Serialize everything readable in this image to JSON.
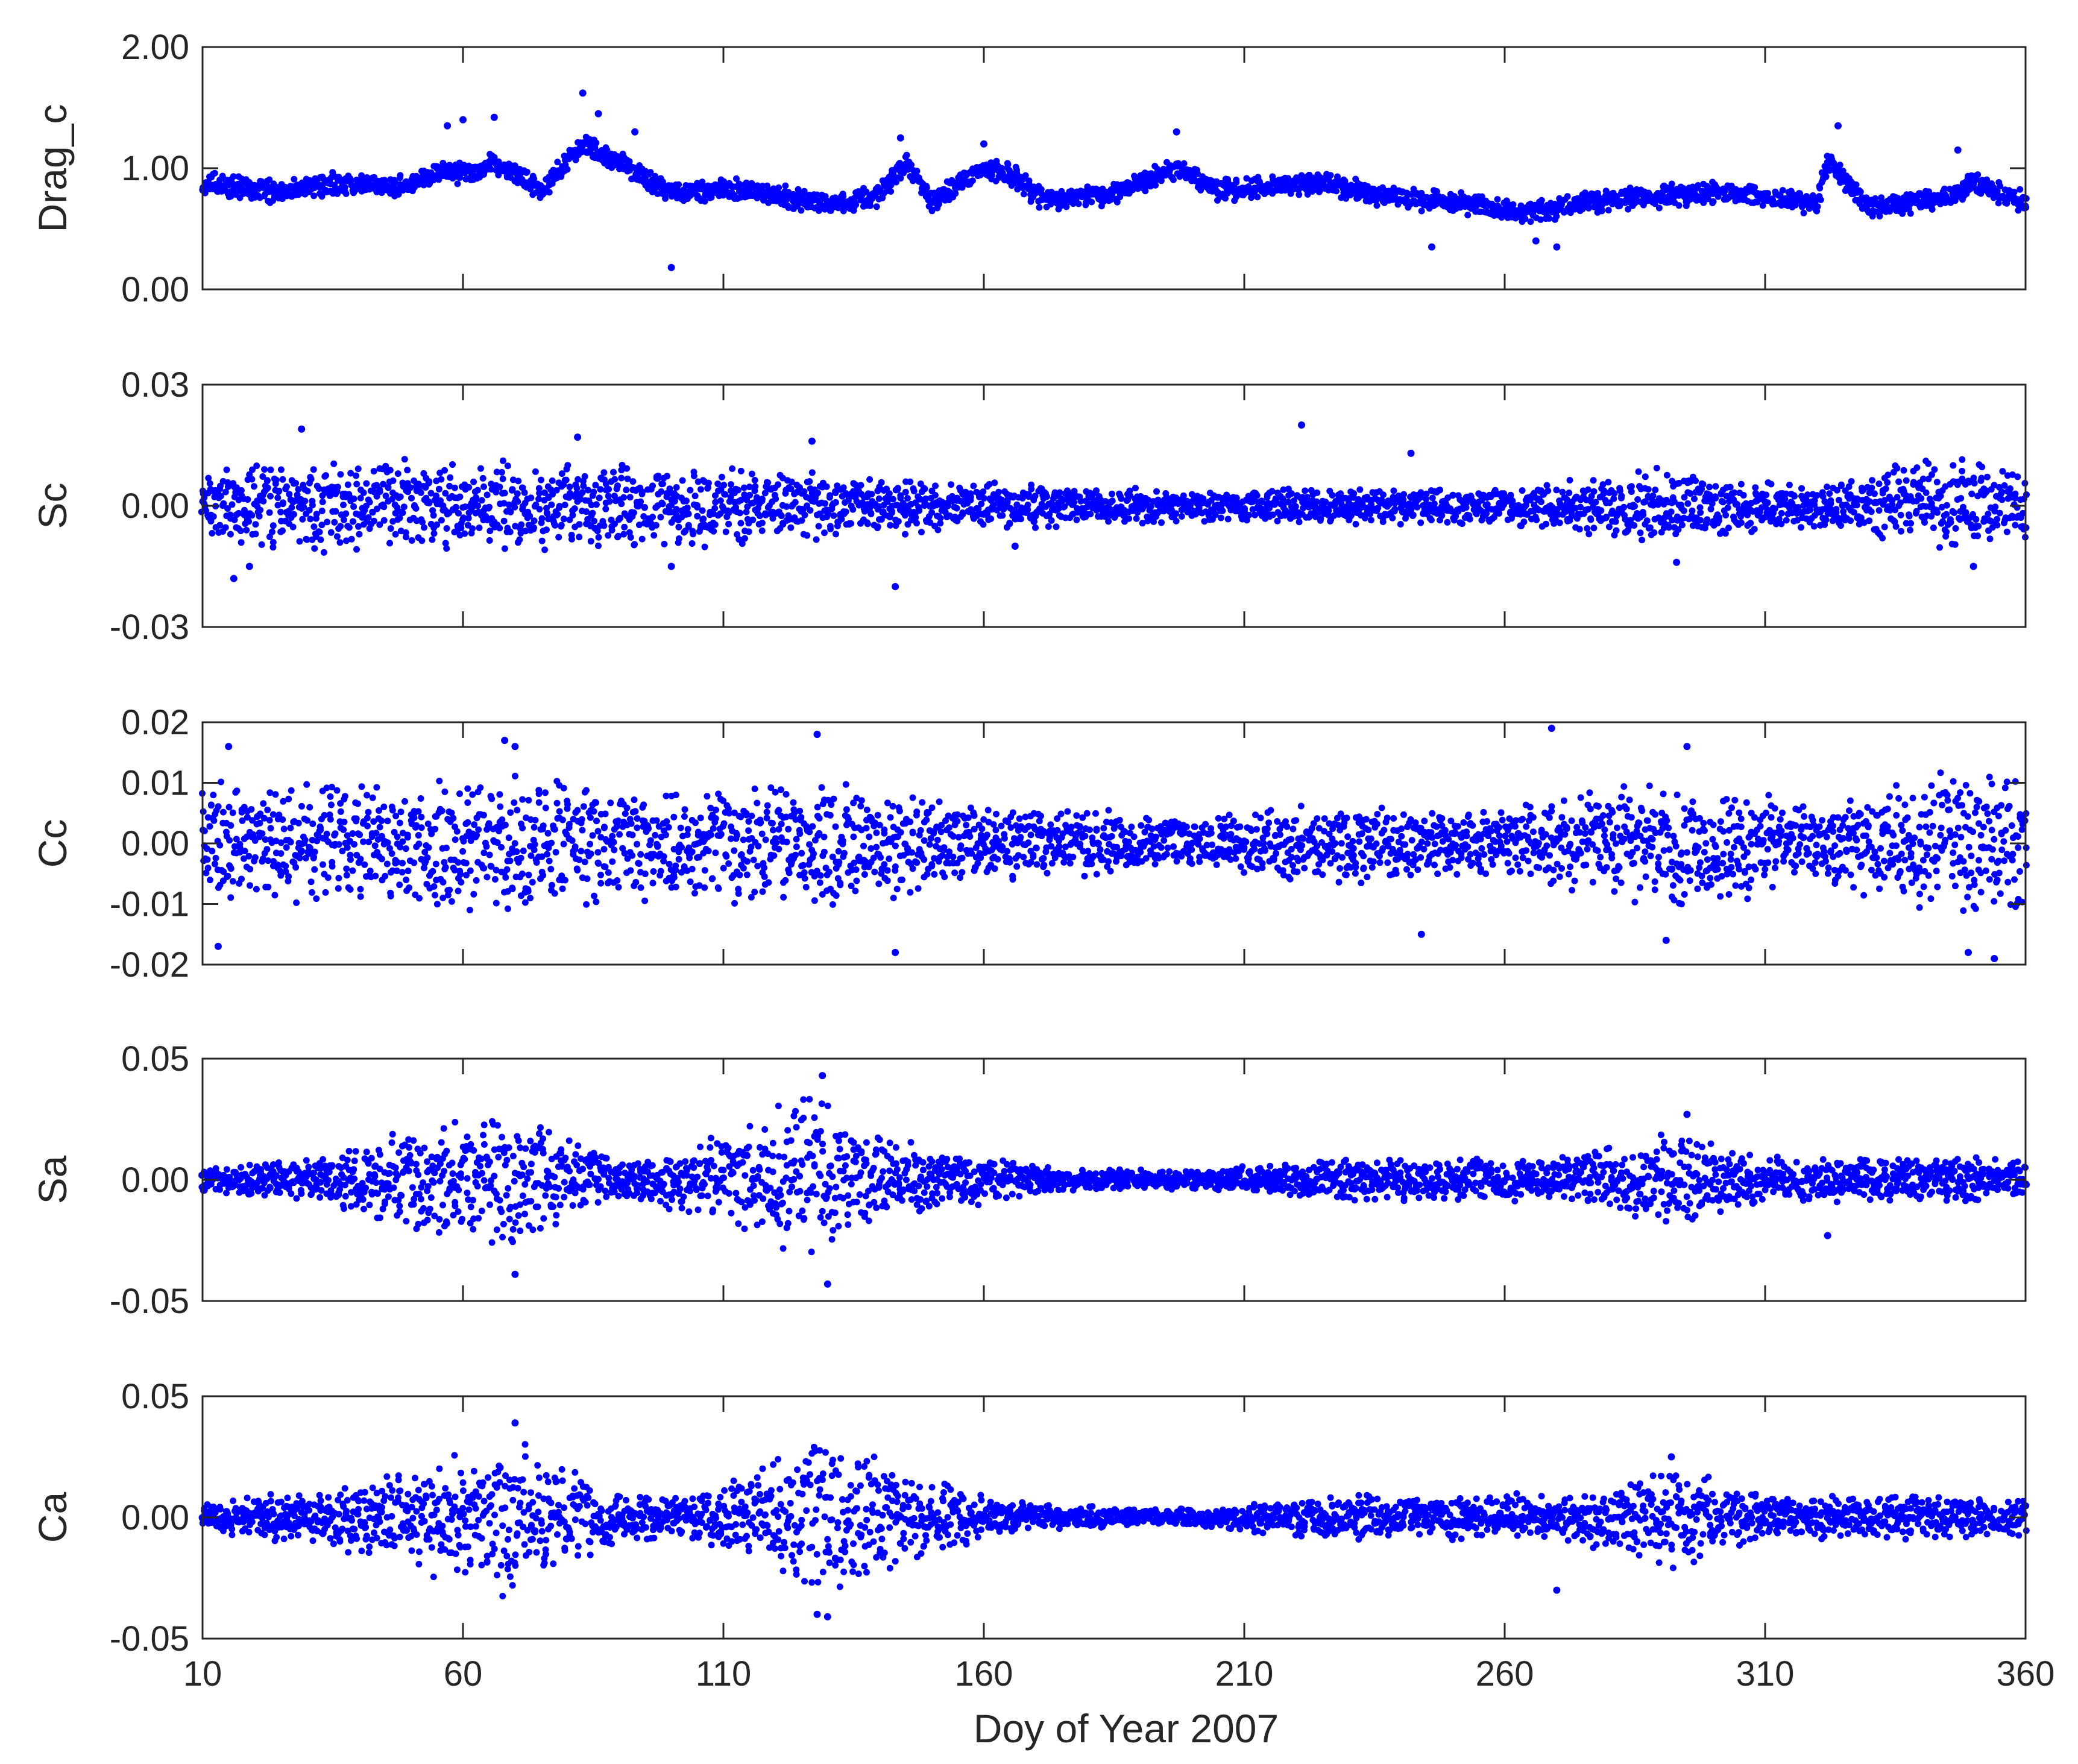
{
  "chart_data": {
    "type": "scatter",
    "xlabel": "Doy of Year 2007",
    "xlim": [
      10,
      360
    ],
    "xticks": [
      10,
      60,
      110,
      160,
      210,
      260,
      310,
      360
    ],
    "xtick_labels": [
      "10",
      "60",
      "110",
      "160",
      "210",
      "260",
      "310",
      "360"
    ],
    "marker_color": "#0000ff",
    "panels": [
      {
        "ylabel": "Drag_c",
        "ylim": [
          0.0,
          2.0
        ],
        "yticks": [
          0.0,
          1.0,
          2.0
        ],
        "ytick_labels": [
          "0.00",
          "1.00",
          "2.00"
        ],
        "base": [
          [
            10,
            0.88
          ],
          [
            25,
            0.8
          ],
          [
            35,
            0.87
          ],
          [
            50,
            0.86
          ],
          [
            55,
            0.98
          ],
          [
            62,
            0.95
          ],
          [
            66,
            1.05
          ],
          [
            75,
            0.82
          ],
          [
            83,
            1.2
          ],
          [
            90,
            1.05
          ],
          [
            100,
            0.8
          ],
          [
            115,
            0.82
          ],
          [
            130,
            0.7
          ],
          [
            140,
            0.78
          ],
          [
            145,
            1.05
          ],
          [
            150,
            0.72
          ],
          [
            160,
            1.0
          ],
          [
            165,
            0.95
          ],
          [
            172,
            0.72
          ],
          [
            185,
            0.8
          ],
          [
            197,
            1.0
          ],
          [
            205,
            0.82
          ],
          [
            215,
            0.85
          ],
          [
            225,
            0.88
          ],
          [
            235,
            0.78
          ],
          [
            250,
            0.72
          ],
          [
            265,
            0.62
          ],
          [
            275,
            0.72
          ],
          [
            300,
            0.8
          ],
          [
            320,
            0.72
          ],
          [
            322,
            1.05
          ],
          [
            330,
            0.68
          ],
          [
            345,
            0.75
          ],
          [
            350,
            0.88
          ],
          [
            360,
            0.72
          ]
        ],
        "amp": [
          [
            10,
            0.1
          ],
          [
            360,
            0.1
          ]
        ],
        "spikes": [
          [
            57,
            1.35
          ],
          [
            60,
            1.4
          ],
          [
            66,
            1.42
          ],
          [
            83,
            1.62
          ],
          [
            86,
            1.45
          ],
          [
            93,
            1.3
          ],
          [
            144,
            1.25
          ],
          [
            160,
            1.2
          ],
          [
            197,
            1.3
          ],
          [
            324,
            1.35
          ],
          [
            347,
            1.15
          ],
          [
            100,
            0.18
          ],
          [
            246,
            0.35
          ],
          [
            270,
            0.35
          ],
          [
            266,
            0.4
          ]
        ]
      },
      {
        "ylabel": "Sc",
        "ylim": [
          -0.03,
          0.03
        ],
        "yticks": [
          -0.03,
          0.0,
          0.03
        ],
        "ytick_labels": [
          "-0.03",
          "0.00",
          "0.03"
        ],
        "base": [
          [
            10,
            0.0
          ],
          [
            360,
            0.0
          ]
        ],
        "amp": [
          [
            10,
            0.009
          ],
          [
            30,
            0.012
          ],
          [
            70,
            0.012
          ],
          [
            110,
            0.011
          ],
          [
            150,
            0.007
          ],
          [
            200,
            0.004
          ],
          [
            230,
            0.005
          ],
          [
            260,
            0.005
          ],
          [
            290,
            0.01
          ],
          [
            320,
            0.006
          ],
          [
            345,
            0.013
          ],
          [
            360,
            0.01
          ]
        ],
        "spikes": [
          [
            29,
            0.019
          ],
          [
            82,
            0.017
          ],
          [
            127,
            0.016
          ],
          [
            221,
            0.02
          ],
          [
            242,
            0.013
          ],
          [
            143,
            -0.02
          ],
          [
            16,
            -0.018
          ],
          [
            19,
            -0.015
          ],
          [
            100,
            -0.015
          ],
          [
            293,
            -0.014
          ],
          [
            350,
            -0.015
          ],
          [
            166,
            -0.01
          ]
        ]
      },
      {
        "ylabel": "Cc",
        "ylim": [
          -0.02,
          0.02
        ],
        "yticks": [
          -0.02,
          -0.01,
          0.0,
          0.01,
          0.02
        ],
        "ytick_labels": [
          "-0.02",
          "-0.01",
          "0.00",
          "0.01",
          "0.02"
        ],
        "base": [
          [
            10,
            0.0
          ],
          [
            360,
            0.0
          ]
        ],
        "amp": [
          [
            10,
            0.011
          ],
          [
            40,
            0.011
          ],
          [
            70,
            0.012
          ],
          [
            100,
            0.01
          ],
          [
            130,
            0.012
          ],
          [
            160,
            0.007
          ],
          [
            200,
            0.005
          ],
          [
            230,
            0.007
          ],
          [
            260,
            0.006
          ],
          [
            290,
            0.012
          ],
          [
            320,
            0.007
          ],
          [
            350,
            0.014
          ],
          [
            360,
            0.011
          ]
        ],
        "spikes": [
          [
            15,
            0.016
          ],
          [
            68,
            0.017
          ],
          [
            70,
            0.016
          ],
          [
            128,
            0.018
          ],
          [
            269,
            0.019
          ],
          [
            295,
            0.016
          ],
          [
            143,
            -0.018
          ],
          [
            244,
            -0.015
          ],
          [
            291,
            -0.016
          ],
          [
            349,
            -0.018
          ],
          [
            354,
            -0.019
          ],
          [
            13,
            -0.017
          ]
        ]
      },
      {
        "ylabel": "Sa",
        "ylim": [
          -0.05,
          0.05
        ],
        "yticks": [
          -0.05,
          0.0,
          0.05
        ],
        "ytick_labels": [
          "-0.05",
          "0.00",
          "0.05"
        ],
        "base": [
          [
            10,
            0.0
          ],
          [
            360,
            0.0
          ]
        ],
        "amp": [
          [
            10,
            0.006
          ],
          [
            30,
            0.01
          ],
          [
            50,
            0.022
          ],
          [
            70,
            0.033
          ],
          [
            90,
            0.01
          ],
          [
            105,
            0.015
          ],
          [
            118,
            0.03
          ],
          [
            128,
            0.04
          ],
          [
            140,
            0.02
          ],
          [
            155,
            0.012
          ],
          [
            175,
            0.005
          ],
          [
            200,
            0.004
          ],
          [
            230,
            0.01
          ],
          [
            270,
            0.01
          ],
          [
            292,
            0.022
          ],
          [
            310,
            0.01
          ],
          [
            340,
            0.01
          ],
          [
            360,
            0.009
          ]
        ],
        "spikes": [
          [
            129,
            0.043
          ],
          [
            130,
            -0.043
          ],
          [
            70,
            -0.039
          ],
          [
            295,
            0.027
          ],
          [
            322,
            -0.023
          ]
        ]
      },
      {
        "ylabel": "Ca",
        "ylim": [
          -0.05,
          0.05
        ],
        "yticks": [
          -0.05,
          0.0,
          0.05
        ],
        "ytick_labels": [
          "-0.05",
          "0.00",
          "0.05"
        ],
        "base": [
          [
            10,
            0.0
          ],
          [
            360,
            0.0
          ]
        ],
        "amp": [
          [
            10,
            0.006
          ],
          [
            30,
            0.012
          ],
          [
            50,
            0.022
          ],
          [
            70,
            0.037
          ],
          [
            90,
            0.01
          ],
          [
            105,
            0.012
          ],
          [
            118,
            0.022
          ],
          [
            128,
            0.035
          ],
          [
            140,
            0.028
          ],
          [
            155,
            0.012
          ],
          [
            175,
            0.005
          ],
          [
            200,
            0.004
          ],
          [
            230,
            0.01
          ],
          [
            270,
            0.01
          ],
          [
            292,
            0.022
          ],
          [
            310,
            0.01
          ],
          [
            340,
            0.01
          ],
          [
            360,
            0.009
          ]
        ],
        "spikes": [
          [
            70,
            0.039
          ],
          [
            128,
            -0.04
          ],
          [
            130,
            -0.041
          ],
          [
            270,
            -0.03
          ],
          [
            292,
            0.025
          ]
        ]
      }
    ]
  }
}
